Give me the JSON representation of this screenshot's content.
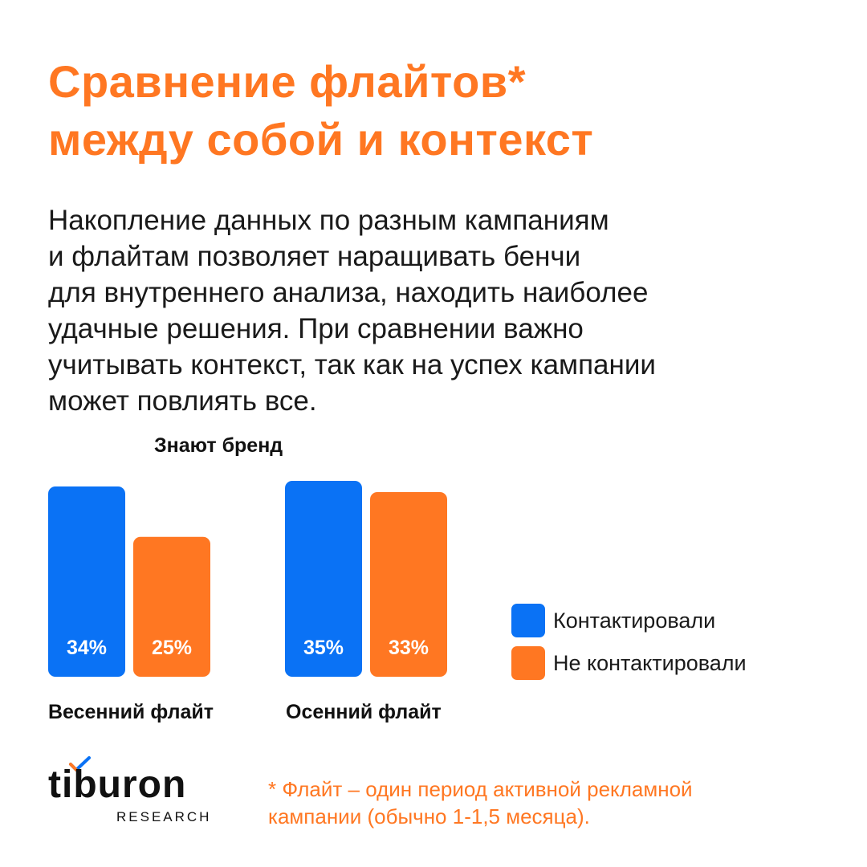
{
  "title": {
    "line1": "Сравнение флайтов*",
    "line2": "между собой и контекст"
  },
  "body": {
    "lines": [
      "Накопление данных по разным кампаниям",
      "и флайтам позволяет наращивать бенчи",
      "для внутреннего анализа, находить наиболее",
      "удачные решения. При сравнении важно",
      "учитывать контекст, так как на успех кампании",
      "может повлиять все."
    ]
  },
  "colors": {
    "accent": "#ff7722",
    "blue": "#0a72f5",
    "orange": "#ff7722",
    "text": "#1a1a1a"
  },
  "chart_data": {
    "type": "bar",
    "title": "Знают бренд",
    "categories": [
      "Весенний флайт",
      "Осенний флайт"
    ],
    "series": [
      {
        "name": "Контактировали",
        "values": [
          34,
          35
        ],
        "labels": [
          "34%",
          "35%"
        ],
        "color": "#0a72f5"
      },
      {
        "name": "Не контактировали",
        "values": [
          25,
          33
        ],
        "labels": [
          "25%",
          "33%"
        ],
        "color": "#ff7722"
      }
    ],
    "ylim": [
      0,
      35
    ],
    "xlabel": "",
    "ylabel": "",
    "grid": false,
    "legend": "right"
  },
  "logo": {
    "name": "tiburon",
    "sub": "RESEARCH"
  },
  "footnote": {
    "line1": "* Флайт – один период активной рекламной",
    "line2": "кампании (обычно 1-1,5 месяца)."
  }
}
